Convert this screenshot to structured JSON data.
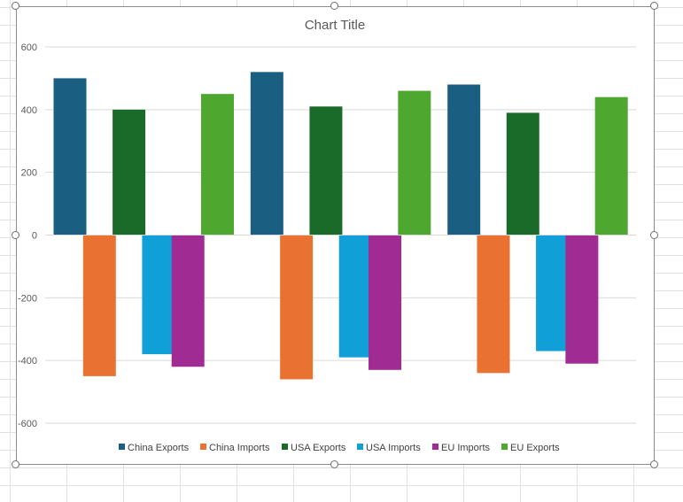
{
  "chart_data": {
    "type": "bar",
    "title": "Chart Title",
    "categories": [
      "",
      "",
      ""
    ],
    "series": [
      {
        "name": "China Exports",
        "color": "#1a5e82",
        "values": [
          500,
          520,
          480
        ]
      },
      {
        "name": "China Imports",
        "color": "#e97132",
        "values": [
          -450,
          -460,
          -440
        ]
      },
      {
        "name": "USA Exports",
        "color": "#1a6b2a",
        "values": [
          400,
          410,
          390
        ]
      },
      {
        "name": "USA Imports",
        "color": "#119fd8",
        "values": [
          -380,
          -390,
          -370
        ]
      },
      {
        "name": "EU Imports",
        "color": "#a02b93",
        "values": [
          -420,
          -430,
          -410
        ]
      },
      {
        "name": "EU Exports",
        "color": "#4ea72e",
        "values": [
          450,
          460,
          440
        ]
      }
    ],
    "ylim": [
      -600,
      600
    ],
    "yticks": [
      600,
      400,
      200,
      0,
      -200,
      -400,
      -600
    ],
    "grid": true,
    "legend_position": "bottom"
  }
}
